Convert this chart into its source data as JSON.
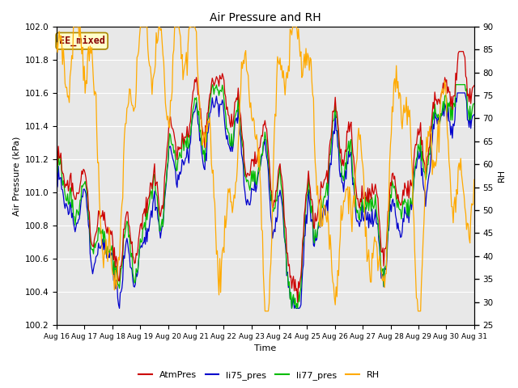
{
  "title": "Air Pressure and RH",
  "xlabel": "Time",
  "ylabel_left": "Air Pressure (kPa)",
  "ylabel_right": "RH",
  "annotation": "EE_mixed",
  "ylim_left": [
    100.2,
    102.0
  ],
  "ylim_right": [
    25,
    90
  ],
  "yticks_left": [
    100.2,
    100.4,
    100.6,
    100.8,
    101.0,
    101.2,
    101.4,
    101.6,
    101.8,
    102.0
  ],
  "yticks_right": [
    25,
    30,
    35,
    40,
    45,
    50,
    55,
    60,
    65,
    70,
    75,
    80,
    85,
    90
  ],
  "xticklabels": [
    "Aug 16",
    "Aug 17",
    "Aug 18",
    "Aug 19",
    "Aug 20",
    "Aug 21",
    "Aug 22",
    "Aug 23",
    "Aug 24",
    "Aug 25",
    "Aug 26",
    "Aug 27",
    "Aug 28",
    "Aug 29",
    "Aug 30",
    "Aug 31"
  ],
  "legend_labels": [
    "AtmPres",
    "li75_pres",
    "li77_pres",
    "RH"
  ],
  "legend_colors": [
    "#cc0000",
    "#0000cc",
    "#00bb00",
    "#ffaa00"
  ],
  "line_colors": {
    "AtmPres": "#cc0000",
    "li75_pres": "#0000cc",
    "li77_pres": "#00bb00",
    "RH": "#ffaa00"
  },
  "background_color": "#ffffff",
  "plot_bg_color": "#e8e8e8",
  "annotation_bg": "#ffffcc",
  "annotation_border": "#aa8800",
  "annotation_text_color": "#880000",
  "grid_color": "#ffffff",
  "n_points": 500
}
